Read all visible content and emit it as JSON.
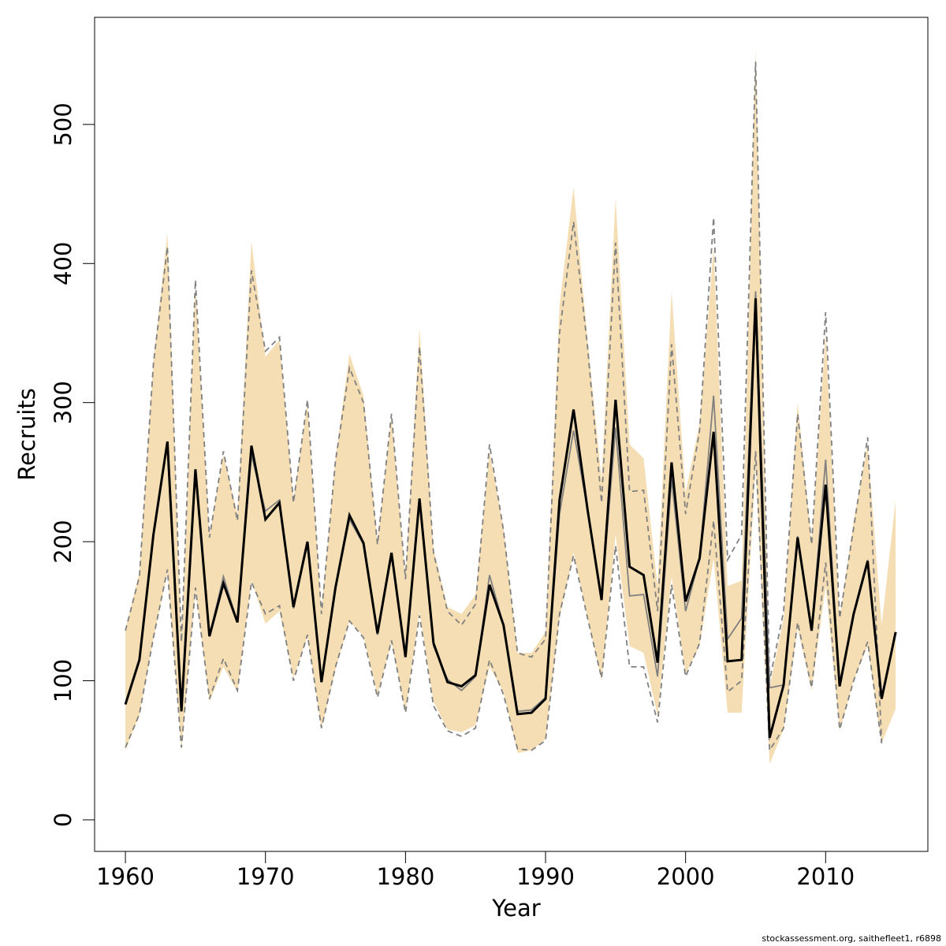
{
  "chart_data": {
    "type": "line",
    "xlabel": "Year",
    "ylabel": "Recruits",
    "footnote": "stockassessment.org, saithefleet1, r6898",
    "x": [
      1960,
      1961,
      1962,
      1963,
      1964,
      1965,
      1966,
      1967,
      1968,
      1969,
      1970,
      1971,
      1972,
      1973,
      1974,
      1975,
      1976,
      1977,
      1978,
      1979,
      1980,
      1981,
      1982,
      1983,
      1984,
      1985,
      1986,
      1987,
      1988,
      1989,
      1990,
      1991,
      1992,
      1993,
      1994,
      1995,
      1996,
      1997,
      1998,
      1999,
      2000,
      2001,
      2002,
      2003,
      2004,
      2005,
      2006,
      2007,
      2008,
      2009,
      2010,
      2011,
      2012,
      2013,
      2014,
      2015
    ],
    "values": [
      83,
      115,
      205,
      272,
      78,
      252,
      132,
      170,
      142,
      269,
      216,
      228,
      153,
      200,
      99,
      167,
      219,
      199,
      134,
      192,
      117,
      231,
      127,
      99,
      96,
      104,
      169,
      140,
      76,
      77,
      87,
      230,
      295,
      223,
      158,
      302,
      182,
      176,
      113,
      257,
      157,
      188,
      279,
      114,
      115,
      375,
      59,
      97,
      203,
      136,
      241,
      96,
      148,
      186,
      87,
      135
    ],
    "ci_low": [
      50,
      75,
      130,
      178,
      50,
      165,
      85,
      110,
      92,
      172,
      141,
      150,
      102,
      132,
      65,
      108,
      143,
      132,
      90,
      128,
      78,
      150,
      85,
      65,
      63,
      68,
      110,
      92,
      48,
      50,
      58,
      145,
      192,
      145,
      100,
      205,
      125,
      120,
      75,
      175,
      105,
      125,
      188,
      77,
      77,
      255,
      40,
      65,
      138,
      93,
      168,
      64,
      100,
      125,
      55,
      80
    ],
    "ci_high": [
      137,
      178,
      330,
      422,
      130,
      385,
      205,
      262,
      220,
      416,
      333,
      345,
      230,
      300,
      150,
      260,
      335,
      305,
      200,
      290,
      175,
      354,
      195,
      153,
      148,
      162,
      265,
      210,
      120,
      120,
      135,
      370,
      455,
      345,
      245,
      447,
      270,
      260,
      168,
      380,
      235,
      285,
      412,
      168,
      172,
      555,
      95,
      145,
      300,
      200,
      350,
      145,
      215,
      270,
      140,
      230
    ],
    "previous": [
      83,
      115,
      205,
      272,
      78,
      252,
      132,
      175,
      142,
      262,
      222,
      230,
      152,
      198,
      99,
      167,
      216,
      198,
      133,
      190,
      117,
      229,
      125,
      101,
      93,
      103,
      176,
      140,
      78,
      79,
      88,
      220,
      280,
      223,
      158,
      282,
      161,
      162,
      103,
      245,
      150,
      188,
      305,
      130,
      145,
      380,
      95,
      97,
      204,
      136,
      259,
      96,
      148,
      187,
      87,
      null
    ],
    "previous_low": [
      52,
      76,
      131,
      180,
      52,
      167,
      87,
      116,
      93,
      171,
      148,
      154,
      100,
      133,
      66,
      110,
      143,
      131,
      88,
      129,
      77,
      147,
      82,
      64,
      60,
      66,
      115,
      90,
      51,
      50,
      57,
      148,
      190,
      145,
      102,
      197,
      110,
      110,
      70,
      169,
      103,
      127,
      215,
      92,
      100,
      265,
      50,
      66,
      142,
      95,
      185,
      65,
      100,
      128,
      55,
      null
    ],
    "previous_high": [
      136,
      175,
      328,
      412,
      128,
      388,
      203,
      265,
      215,
      395,
      337,
      347,
      228,
      302,
      148,
      258,
      325,
      300,
      198,
      292,
      173,
      340,
      192,
      150,
      140,
      155,
      270,
      208,
      120,
      117,
      130,
      350,
      430,
      340,
      228,
      415,
      236,
      237,
      150,
      342,
      220,
      280,
      433,
      187,
      205,
      545,
      100,
      150,
      292,
      198,
      365,
      145,
      210,
      275,
      56,
      null
    ],
    "band_color": "#f5deb3",
    "line_color": "#000000",
    "previous_color": "#808080",
    "xlim": [
      1957.8,
      2017.3
    ],
    "ylim": [
      -22.7,
      577
    ],
    "xticks": [
      1960,
      1970,
      1980,
      1990,
      2000,
      2010
    ],
    "yticks": [
      0,
      100,
      200,
      300,
      400,
      500
    ]
  }
}
